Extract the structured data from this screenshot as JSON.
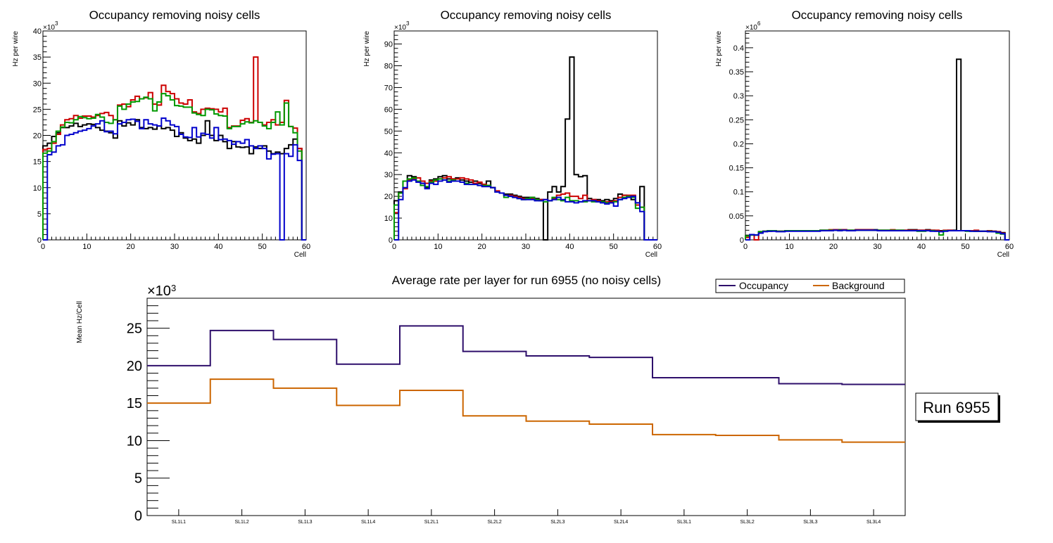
{
  "chart_data": [
    {
      "type": "histogram",
      "title": "Occupancy removing noisy cells",
      "xlabel": "Cell",
      "ylabel": "Hz per wire",
      "y_multiplier": "×10^3",
      "xlim": [
        0,
        60
      ],
      "ylim": [
        0,
        40
      ],
      "xticks": [
        "0",
        "10",
        "20",
        "30",
        "40",
        "50",
        "60"
      ],
      "yticks": [
        "0",
        "5",
        "10",
        "15",
        "20",
        "25",
        "30",
        "35",
        "40"
      ],
      "series": [
        {
          "name": "black",
          "color": "#000000",
          "values": [
            18.0,
            18.5,
            19.8,
            20.5,
            21.5,
            21.5,
            21.8,
            22.3,
            21.7,
            22.0,
            22.2,
            22.1,
            21.5,
            21.0,
            20.8,
            20.5,
            19.5,
            22.8,
            21.8,
            22.4,
            22.0,
            23.0,
            21.5,
            21.3,
            21.5,
            21.2,
            21.8,
            21.3,
            21.5,
            21.0,
            19.8,
            20.5,
            19.5,
            19.0,
            19.3,
            18.5,
            20.0,
            22.8,
            20.0,
            19.0,
            20.0,
            18.8,
            17.5,
            18.8,
            17.8,
            17.7,
            17.8,
            16.5,
            17.8,
            17.5,
            18.0,
            17.0,
            16.5,
            16.8,
            16.5,
            17.5,
            18.2,
            19.3,
            17.5,
            0
          ]
        },
        {
          "name": "red",
          "color": "#cc0000",
          "values": [
            17.3,
            17.5,
            18.5,
            20.2,
            22.0,
            23.0,
            23.2,
            23.8,
            23.3,
            23.7,
            23.7,
            23.5,
            23.8,
            24.2,
            24.4,
            23.8,
            23.0,
            25.8,
            26.0,
            25.5,
            26.8,
            27.5,
            27.0,
            27.2,
            28.2,
            26.0,
            25.8,
            29.6,
            28.4,
            28.0,
            27.0,
            26.2,
            26.0,
            26.8,
            24.5,
            24.2,
            25.0,
            25.2,
            25.1,
            25.0,
            24.5,
            25.2,
            21.5,
            21.8,
            21.8,
            22.9,
            23.2,
            22.5,
            35.0,
            22.5,
            22.0,
            22.5,
            23.0,
            22.0,
            22.5,
            26.7,
            21.7,
            21.4,
            17.5,
            0
          ]
        },
        {
          "name": "green",
          "color": "#009900",
          "values": [
            16.6,
            17.0,
            18.8,
            20.8,
            21.6,
            22.5,
            22.4,
            23.0,
            23.6,
            23.4,
            23.2,
            23.3,
            24.0,
            23.5,
            22.5,
            22.3,
            23.0,
            25.6,
            25.0,
            26.0,
            26.4,
            26.5,
            27.0,
            27.3,
            27.0,
            24.7,
            26.4,
            28.0,
            27.6,
            26.8,
            25.7,
            25.6,
            25.4,
            25.4,
            24.3,
            24.0,
            23.8,
            25.0,
            24.9,
            24.1,
            23.8,
            23.7,
            21.3,
            21.7,
            21.7,
            22.2,
            22.6,
            22.4,
            22.8,
            22.5,
            21.8,
            21.3,
            22.5,
            24.5,
            22.0,
            26.2,
            21.7,
            20.5,
            17.0,
            0
          ]
        },
        {
          "name": "blue",
          "color": "#0000cc",
          "values": [
            0,
            16.3,
            16.8,
            18.0,
            18.2,
            20.0,
            20.2,
            20.5,
            20.8,
            21.0,
            21.3,
            21.8,
            22.2,
            22.8,
            20.7,
            20.8,
            20.3,
            22.2,
            22.5,
            23.0,
            23.1,
            22.7,
            21.3,
            23.0,
            22.2,
            22.0,
            21.8,
            23.3,
            22.8,
            22.0,
            21.7,
            20.2,
            19.7,
            19.6,
            21.5,
            19.7,
            20.4,
            20.2,
            19.5,
            21.5,
            19.2,
            19.3,
            19.0,
            18.3,
            18.8,
            18.5,
            19.2,
            18.0,
            17.5,
            18.0,
            17.5,
            15.5,
            16.4,
            16.5,
            0,
            16.5,
            16.0,
            18.2,
            15.2,
            0
          ]
        }
      ]
    },
    {
      "type": "histogram",
      "title": "Occupancy removing noisy cells",
      "xlabel": "Cell",
      "ylabel": "Hz per wire",
      "y_multiplier": "×10^3",
      "xlim": [
        0,
        60
      ],
      "ylim": [
        0,
        96
      ],
      "xticks": [
        "0",
        "10",
        "20",
        "30",
        "40",
        "50",
        "60"
      ],
      "yticks": [
        "0",
        "10",
        "20",
        "30",
        "40",
        "50",
        "60",
        "70",
        "80",
        "90"
      ],
      "series": [
        {
          "name": "black",
          "color": "#000000",
          "values": [
            18.0,
            22.0,
            27.0,
            29.5,
            29.0,
            27.0,
            26.0,
            24.0,
            27.5,
            28.0,
            29.0,
            29.5,
            28.0,
            28.0,
            28.5,
            27.5,
            27.0,
            26.5,
            27.0,
            26.0,
            25.5,
            27.0,
            24.0,
            22.0,
            21.5,
            21.0,
            21.0,
            20.5,
            20.0,
            19.5,
            19.5,
            19.5,
            19.0,
            18.5,
            0,
            22.0,
            24.5,
            22.0,
            24.5,
            55.5,
            84.0,
            30.0,
            29.0,
            29.5,
            19.0,
            18.5,
            18.5,
            18.0,
            18.5,
            18.0,
            19.0,
            21.0,
            20.5,
            20.0,
            18.5,
            17.0,
            24.5,
            0,
            0,
            0
          ]
        },
        {
          "name": "red",
          "color": "#cc0000",
          "values": [
            12.5,
            21.5,
            23.5,
            27.5,
            28.0,
            28.5,
            27.0,
            26.0,
            27.0,
            27.0,
            28.0,
            28.5,
            29.0,
            28.0,
            28.0,
            28.5,
            28.0,
            27.5,
            26.0,
            26.5,
            25.5,
            25.0,
            24.0,
            22.5,
            21.5,
            20.5,
            20.5,
            20.0,
            19.5,
            19.0,
            19.0,
            19.0,
            18.5,
            18.5,
            18.5,
            18.0,
            19.0,
            20.5,
            21.0,
            21.5,
            20.0,
            20.0,
            19.0,
            20.5,
            18.0,
            18.5,
            18.0,
            17.5,
            17.5,
            17.5,
            18.0,
            19.5,
            20.5,
            20.5,
            20.5,
            16.0,
            15.0,
            0,
            0,
            0
          ]
        },
        {
          "name": "green",
          "color": "#009900",
          "values": [
            16.0,
            21.5,
            27.0,
            28.0,
            28.5,
            27.0,
            25.0,
            24.5,
            26.5,
            27.5,
            28.0,
            27.5,
            27.0,
            27.5,
            27.0,
            26.5,
            26.0,
            25.5,
            25.5,
            25.0,
            25.0,
            25.0,
            24.0,
            22.0,
            21.5,
            19.5,
            20.0,
            19.5,
            19.0,
            18.5,
            19.0,
            19.5,
            18.5,
            18.0,
            17.5,
            18.0,
            19.5,
            18.5,
            18.0,
            19.5,
            18.0,
            18.0,
            17.5,
            17.5,
            18.0,
            17.5,
            17.5,
            17.5,
            17.0,
            17.0,
            17.5,
            18.5,
            19.5,
            20.0,
            19.5,
            14.5,
            15.0,
            0,
            0,
            0
          ]
        },
        {
          "name": "blue",
          "color": "#0000cc",
          "values": [
            0,
            18.5,
            24.0,
            27.0,
            27.5,
            26.5,
            26.0,
            23.5,
            26.0,
            25.5,
            27.0,
            27.5,
            26.5,
            27.0,
            27.0,
            26.5,
            25.5,
            25.5,
            25.5,
            25.0,
            24.5,
            24.5,
            24.0,
            22.0,
            21.5,
            20.5,
            20.0,
            19.5,
            19.0,
            18.5,
            18.5,
            18.5,
            18.0,
            18.0,
            18.5,
            18.0,
            18.5,
            19.5,
            18.5,
            17.5,
            17.5,
            17.0,
            17.5,
            18.0,
            18.0,
            18.0,
            17.5,
            17.0,
            16.5,
            17.0,
            15.5,
            18.5,
            19.0,
            19.5,
            20.0,
            17.0,
            13.0,
            0,
            0,
            0
          ]
        }
      ]
    },
    {
      "type": "histogram",
      "title": "Occupancy removing noisy cells",
      "xlabel": "Cell",
      "ylabel": "Hz per wire",
      "y_multiplier": "×10^6",
      "xlim": [
        0,
        60
      ],
      "ylim": [
        0,
        0.435
      ],
      "xticks": [
        "0",
        "10",
        "20",
        "30",
        "40",
        "50",
        "60"
      ],
      "yticks": [
        "0",
        "0.05",
        "0.1",
        "0.15",
        "0.2",
        "0.25",
        "0.3",
        "0.35",
        "0.4"
      ],
      "series": [
        {
          "name": "black",
          "color": "#000000",
          "values": [
            0.008,
            0.011,
            0.01,
            0.017,
            0.018,
            0.018,
            0.019,
            0.018,
            0.018,
            0.019,
            0.019,
            0.019,
            0.019,
            0.019,
            0.019,
            0.019,
            0.019,
            0.02,
            0.02,
            0.02,
            0.021,
            0.021,
            0.021,
            0.02,
            0.02,
            0.021,
            0.021,
            0.021,
            0.021,
            0.021,
            0.02,
            0.02,
            0.02,
            0.02,
            0.02,
            0.02,
            0.02,
            0.021,
            0.021,
            0.02,
            0.02,
            0.021,
            0.02,
            0.019,
            0.019,
            0.019,
            0.02,
            0.02,
            0.376,
            0.019,
            0.019,
            0.019,
            0.018,
            0.018,
            0.018,
            0.018,
            0.018,
            0.017,
            0.015,
            0
          ]
        },
        {
          "name": "red",
          "color": "#cc0000",
          "values": [
            0.005,
            0.01,
            0,
            0.015,
            0.018,
            0.019,
            0.019,
            0.018,
            0.018,
            0.019,
            0.019,
            0.019,
            0.019,
            0.019,
            0.019,
            0.019,
            0.019,
            0.02,
            0.02,
            0.021,
            0.021,
            0.02,
            0.021,
            0.02,
            0.02,
            0.021,
            0.021,
            0.021,
            0.021,
            0.02,
            0.02,
            0.02,
            0.02,
            0.021,
            0.02,
            0.02,
            0.02,
            0.02,
            0.02,
            0.02,
            0.02,
            0.02,
            0.02,
            0.02,
            0.018,
            0.02,
            0.02,
            0.019,
            0.019,
            0.019,
            0.019,
            0.019,
            0.02,
            0.018,
            0.018,
            0.019,
            0.018,
            0.017,
            0.014,
            0
          ]
        },
        {
          "name": "green",
          "color": "#009900",
          "values": [
            0.008,
            0.01,
            0.01,
            0.017,
            0.018,
            0.019,
            0.019,
            0.018,
            0.018,
            0.019,
            0.019,
            0.019,
            0.019,
            0.019,
            0.019,
            0.019,
            0.019,
            0.02,
            0.02,
            0.02,
            0.02,
            0.02,
            0.02,
            0.02,
            0.02,
            0.02,
            0.02,
            0.02,
            0.02,
            0.02,
            0.02,
            0.02,
            0.02,
            0.02,
            0.02,
            0.02,
            0.019,
            0.019,
            0.019,
            0.018,
            0.018,
            0.019,
            0.019,
            0.018,
            0.01,
            0.019,
            0.019,
            0.019,
            0.019,
            0.019,
            0.018,
            0.018,
            0.018,
            0.018,
            0.018,
            0.018,
            0.017,
            0.014,
            0.012,
            0
          ]
        },
        {
          "name": "blue",
          "color": "#0000cc",
          "values": [
            0,
            0.011,
            0.01,
            0.014,
            0.017,
            0.018,
            0.018,
            0.017,
            0.017,
            0.018,
            0.018,
            0.018,
            0.018,
            0.018,
            0.018,
            0.018,
            0.018,
            0.019,
            0.019,
            0.019,
            0.02,
            0.019,
            0.02,
            0.019,
            0.019,
            0.02,
            0.02,
            0.02,
            0.02,
            0.02,
            0.019,
            0.019,
            0.019,
            0.019,
            0.019,
            0.019,
            0.019,
            0.019,
            0.019,
            0.019,
            0.019,
            0.019,
            0.018,
            0.018,
            0.017,
            0.018,
            0.019,
            0.019,
            0.019,
            0.019,
            0.019,
            0.018,
            0.018,
            0.018,
            0.018,
            0.017,
            0.017,
            0.016,
            0.013,
            0
          ]
        }
      ]
    },
    {
      "type": "line",
      "title": "Average rate per layer for run 6955 (no noisy cells)",
      "xlabel": "",
      "ylabel": "Mean Hz/Cell",
      "y_multiplier": "×10^3",
      "ylim": [
        0,
        29
      ],
      "yticks": [
        "0",
        "5",
        "10",
        "15",
        "20",
        "25"
      ],
      "categories": [
        "SL1L1",
        "SL1L2",
        "SL1L3",
        "SL1L4",
        "SL2L1",
        "SL2L2",
        "SL2L3",
        "SL2L4",
        "SL3L1",
        "SL3L2",
        "SL3L3",
        "SL3L4"
      ],
      "legend": {
        "position": "top-right",
        "entries": [
          "Occupancy",
          "Background"
        ]
      },
      "series": [
        {
          "name": "Occupancy",
          "color": "#2e0f6b",
          "values": [
            20.0,
            24.7,
            23.5,
            20.2,
            25.3,
            21.9,
            21.3,
            21.1,
            18.4,
            18.4,
            17.6,
            17.5
          ]
        },
        {
          "name": "Background",
          "color": "#cc6600",
          "values": [
            15.0,
            18.2,
            17.0,
            14.7,
            16.7,
            13.3,
            12.6,
            12.2,
            10.8,
            10.7,
            10.1,
            9.8
          ]
        }
      ],
      "annotation": "Run 6955"
    }
  ]
}
